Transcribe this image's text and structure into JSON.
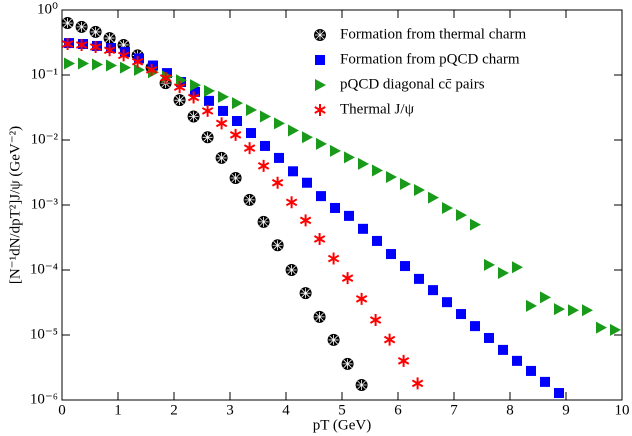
{
  "chart_data": {
    "type": "scatter",
    "x_label": "pT (GeV)",
    "y_label": "[N⁻¹dN/dpT²]J/ψ (GeV⁻²)",
    "log_y": true,
    "legend": "upper right",
    "xlim": [
      0,
      10
    ],
    "ylim": [
      1e-06,
      1
    ],
    "xticks": [
      0,
      1,
      2,
      3,
      4,
      5,
      6,
      7,
      8,
      9,
      10
    ],
    "yticks": [
      {
        "value": 1e-06,
        "label": "10⁻⁶"
      },
      {
        "value": 1e-05,
        "label": "10⁻⁵"
      },
      {
        "value": 0.0001,
        "label": "10⁻⁴"
      },
      {
        "value": 0.001,
        "label": "10⁻³"
      },
      {
        "value": 0.01,
        "label": "10⁻²"
      },
      {
        "value": 0.1,
        "label": "10⁻¹"
      },
      {
        "value": 1,
        "label": "10⁰"
      }
    ],
    "series": [
      {
        "name": "Formation from thermal charm",
        "color": "#000000",
        "marker": "circle",
        "x": [
          0.1,
          0.35,
          0.6,
          0.85,
          1.1,
          1.35,
          1.6,
          1.85,
          2.1,
          2.35,
          2.6,
          2.85,
          3.1,
          3.35,
          3.6,
          3.85,
          4.1,
          4.35,
          4.6,
          4.85,
          5.1,
          5.35
        ],
        "values": [
          0.63,
          0.55,
          0.46,
          0.37,
          0.29,
          0.2,
          0.13,
          0.075,
          0.041,
          0.023,
          0.011,
          0.0053,
          0.0026,
          0.0012,
          0.00055,
          0.00024,
          0.0001,
          4.4e-05,
          1.9e-05,
          8.4e-06,
          3.6e-06,
          1.7e-06
        ]
      },
      {
        "name": "Formation from pQCD charm",
        "color": "#0000ff",
        "marker": "square",
        "x": [
          0.125,
          0.375,
          0.625,
          0.875,
          1.125,
          1.375,
          1.625,
          1.875,
          2.125,
          2.375,
          2.625,
          2.875,
          3.125,
          3.375,
          3.625,
          3.875,
          4.125,
          4.375,
          4.625,
          4.875,
          5.125,
          5.375,
          5.625,
          5.875,
          6.125,
          6.375,
          6.625,
          6.875,
          7.125,
          7.375,
          7.625,
          7.875,
          8.125,
          8.375,
          8.625,
          8.875
        ],
        "values": [
          0.31,
          0.3,
          0.28,
          0.26,
          0.226,
          0.18,
          0.14,
          0.107,
          0.078,
          0.055,
          0.04,
          0.028,
          0.0196,
          0.0128,
          0.0081,
          0.0053,
          0.0033,
          0.0022,
          0.00137,
          0.0009,
          0.00068,
          0.00043,
          0.00028,
          0.000176,
          0.000115,
          7.3e-05,
          4.9e-05,
          3.2e-05,
          2.1e-05,
          1.37e-05,
          9e-06,
          5.9e-06,
          4e-06,
          2.8e-06,
          1.9e-06,
          1.28e-06
        ]
      },
      {
        "name": "pQCD diagonal cc̄ pairs",
        "color": "#1a9a1a",
        "marker": "triangle",
        "x": [
          0.125,
          0.375,
          0.625,
          0.875,
          1.125,
          1.375,
          1.625,
          1.875,
          2.125,
          2.375,
          2.625,
          2.875,
          3.125,
          3.375,
          3.625,
          3.875,
          4.125,
          4.375,
          4.625,
          4.875,
          5.125,
          5.375,
          5.625,
          5.875,
          6.125,
          6.375,
          6.625,
          6.875,
          7.125,
          7.375,
          7.625,
          7.875,
          8.125,
          8.375,
          8.625,
          8.875,
          9.125,
          9.375,
          9.625,
          9.875
        ],
        "values": [
          0.15,
          0.15,
          0.145,
          0.14,
          0.13,
          0.12,
          0.11,
          0.095,
          0.083,
          0.07,
          0.057,
          0.046,
          0.037,
          0.029,
          0.023,
          0.018,
          0.014,
          0.011,
          0.0087,
          0.0068,
          0.0054,
          0.0043,
          0.0034,
          0.0027,
          0.0021,
          0.0017,
          0.0013,
          0.0009,
          0.0007,
          0.0005,
          0.00012,
          9e-05,
          0.00011,
          2.8e-05,
          3.8e-05,
          2.5e-05,
          2.4e-05,
          2.4e-05,
          1.3e-05,
          1.2e-05
        ]
      },
      {
        "name": "Thermal J/ψ",
        "color": "#ff0000",
        "marker": "star",
        "x": [
          0.1,
          0.35,
          0.6,
          0.85,
          1.1,
          1.35,
          1.6,
          1.85,
          2.1,
          2.35,
          2.6,
          2.85,
          3.1,
          3.35,
          3.6,
          3.85,
          4.1,
          4.35,
          4.6,
          4.85,
          5.1,
          5.35,
          5.6,
          5.85,
          6.1,
          6.35
        ],
        "values": [
          0.3,
          0.29,
          0.27,
          0.24,
          0.2,
          0.16,
          0.12,
          0.09,
          0.065,
          0.045,
          0.028,
          0.018,
          0.012,
          0.0075,
          0.004,
          0.0022,
          0.0011,
          0.00058,
          0.0003,
          0.00015,
          7.5e-05,
          3.6e-05,
          1.7e-05,
          8.5e-06,
          4e-06,
          1.8e-06
        ]
      }
    ]
  }
}
